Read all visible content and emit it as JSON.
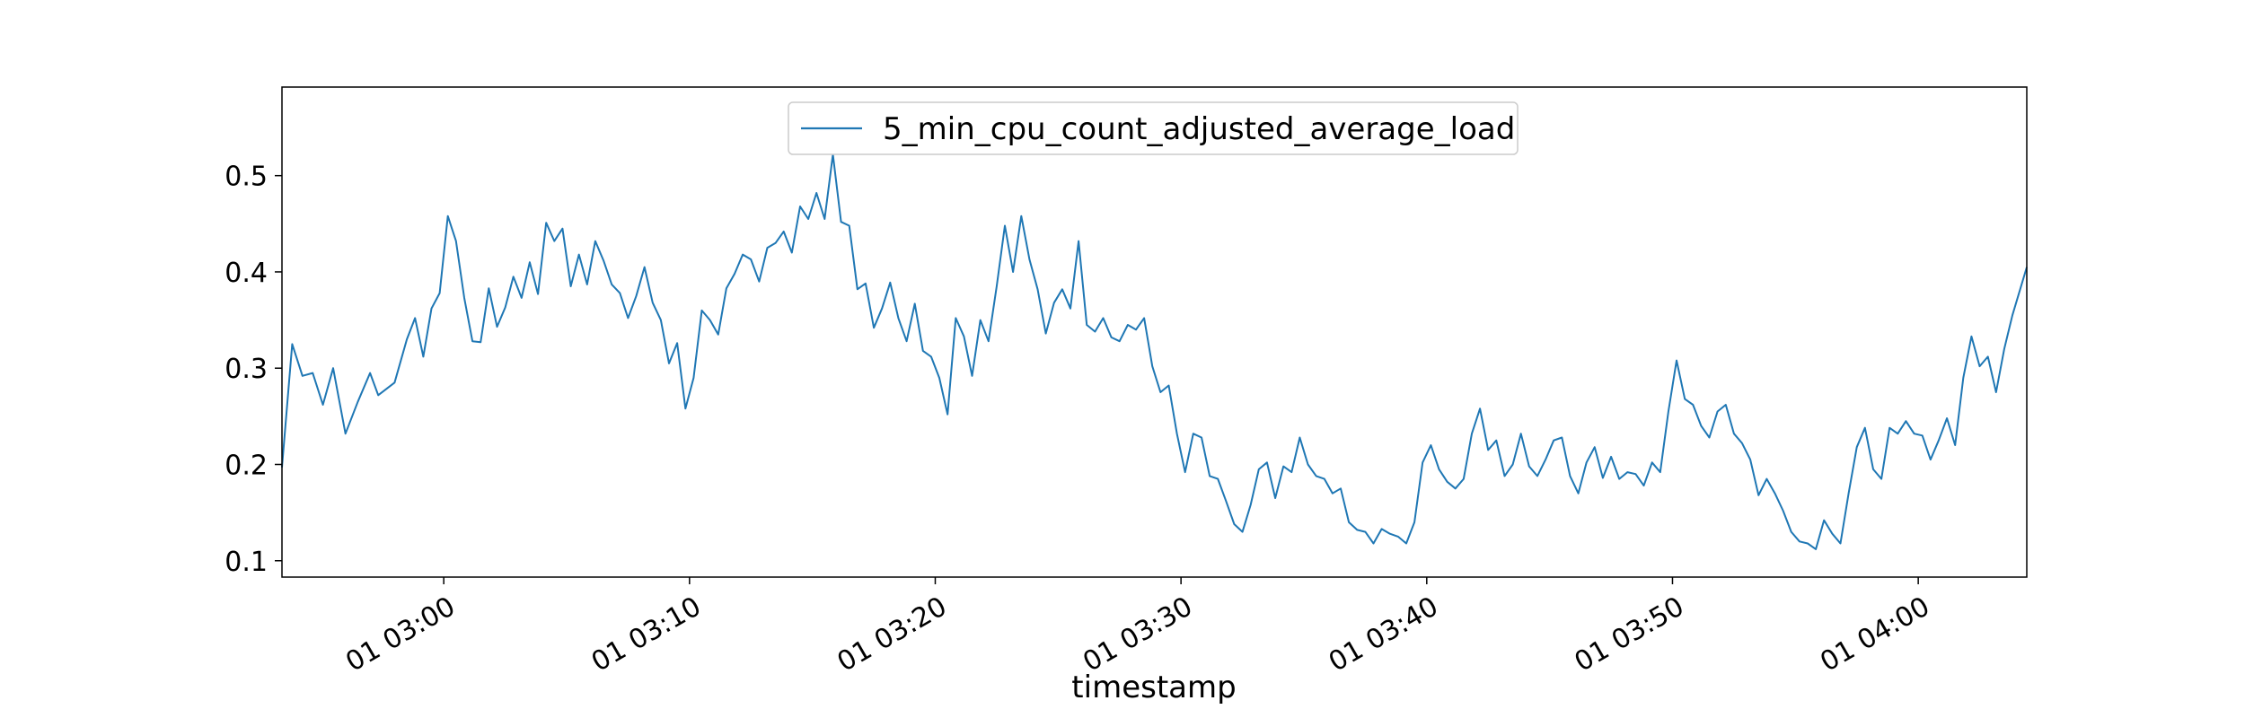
{
  "chart_data": {
    "type": "line",
    "title": "",
    "xlabel": "timestamp",
    "ylabel": "",
    "x_unit": "minutes (clock time 01 HH:MM)",
    "xlim": [
      "02:53:25",
      "04:04:25"
    ],
    "ylim": [
      0.083,
      0.592
    ],
    "x_ticks": [
      {
        "value": "03:00",
        "label": "01 03:00"
      },
      {
        "value": "03:10",
        "label": "01 03:10"
      },
      {
        "value": "03:20",
        "label": "01 03:20"
      },
      {
        "value": "03:30",
        "label": "01 03:30"
      },
      {
        "value": "03:40",
        "label": "01 03:40"
      },
      {
        "value": "03:50",
        "label": "01 03:50"
      },
      {
        "value": "04:00",
        "label": "01 04:00"
      }
    ],
    "y_ticks": [
      {
        "value": 0.1,
        "label": "0.1"
      },
      {
        "value": 0.2,
        "label": "0.2"
      },
      {
        "value": 0.3,
        "label": "0.3"
      },
      {
        "value": 0.4,
        "label": "0.4"
      },
      {
        "value": 0.5,
        "label": "0.5"
      }
    ],
    "grid": false,
    "legend": {
      "placement": "upper center"
    },
    "series": [
      {
        "name": "5_min_cpu_count_adjusted_average_load",
        "color": "#1f77b4",
        "points": [
          [
            "02:53:25",
            0.197
          ],
          [
            "02:53:50",
            0.325
          ],
          [
            "02:54:15",
            0.292
          ],
          [
            "02:54:40",
            0.295
          ],
          [
            "02:55:05",
            0.262
          ],
          [
            "02:55:30",
            0.3
          ],
          [
            "02:56:00",
            0.232
          ],
          [
            "02:56:30",
            0.265
          ],
          [
            "02:57:00",
            0.295
          ],
          [
            "02:57:20",
            0.272
          ],
          [
            "02:58:00",
            0.285
          ],
          [
            "02:58:30",
            0.33
          ],
          [
            "02:58:50",
            0.352
          ],
          [
            "02:59:10",
            0.312
          ],
          [
            "02:59:30",
            0.362
          ],
          [
            "02:59:50",
            0.378
          ],
          [
            "03:00:10",
            0.458
          ],
          [
            "03:00:30",
            0.432
          ],
          [
            "03:00:50",
            0.373
          ],
          [
            "03:01:10",
            0.328
          ],
          [
            "03:01:30",
            0.327
          ],
          [
            "03:01:50",
            0.383
          ],
          [
            "03:02:10",
            0.343
          ],
          [
            "03:02:30",
            0.363
          ],
          [
            "03:02:50",
            0.395
          ],
          [
            "03:03:10",
            0.373
          ],
          [
            "03:03:30",
            0.41
          ],
          [
            "03:03:50",
            0.377
          ],
          [
            "03:04:10",
            0.451
          ],
          [
            "03:04:30",
            0.432
          ],
          [
            "03:04:50",
            0.445
          ],
          [
            "03:05:10",
            0.385
          ],
          [
            "03:05:30",
            0.418
          ],
          [
            "03:05:50",
            0.387
          ],
          [
            "03:06:10",
            0.432
          ],
          [
            "03:06:30",
            0.412
          ],
          [
            "03:06:50",
            0.387
          ],
          [
            "03:07:10",
            0.378
          ],
          [
            "03:07:30",
            0.352
          ],
          [
            "03:07:50",
            0.375
          ],
          [
            "03:08:10",
            0.405
          ],
          [
            "03:08:30",
            0.368
          ],
          [
            "03:08:50",
            0.35
          ],
          [
            "03:09:10",
            0.305
          ],
          [
            "03:09:30",
            0.326
          ],
          [
            "03:09:50",
            0.258
          ],
          [
            "03:10:10",
            0.29
          ],
          [
            "03:10:30",
            0.36
          ],
          [
            "03:10:50",
            0.35
          ],
          [
            "03:11:10",
            0.335
          ],
          [
            "03:11:30",
            0.383
          ],
          [
            "03:11:50",
            0.398
          ],
          [
            "03:12:10",
            0.418
          ],
          [
            "03:12:30",
            0.413
          ],
          [
            "03:12:50",
            0.39
          ],
          [
            "03:13:10",
            0.425
          ],
          [
            "03:13:30",
            0.43
          ],
          [
            "03:13:50",
            0.442
          ],
          [
            "03:14:10",
            0.42
          ],
          [
            "03:14:30",
            0.468
          ],
          [
            "03:14:50",
            0.455
          ],
          [
            "03:15:10",
            0.482
          ],
          [
            "03:15:30",
            0.455
          ],
          [
            "03:15:50",
            0.522
          ],
          [
            "03:16:10",
            0.452
          ],
          [
            "03:16:30",
            0.448
          ],
          [
            "03:16:50",
            0.382
          ],
          [
            "03:17:10",
            0.388
          ],
          [
            "03:17:30",
            0.342
          ],
          [
            "03:17:50",
            0.362
          ],
          [
            "03:18:10",
            0.389
          ],
          [
            "03:18:30",
            0.352
          ],
          [
            "03:18:50",
            0.328
          ],
          [
            "03:19:10",
            0.367
          ],
          [
            "03:19:30",
            0.318
          ],
          [
            "03:19:50",
            0.312
          ],
          [
            "03:20:10",
            0.29
          ],
          [
            "03:20:30",
            0.252
          ],
          [
            "03:20:50",
            0.352
          ],
          [
            "03:21:10",
            0.333
          ],
          [
            "03:21:30",
            0.292
          ],
          [
            "03:21:50",
            0.35
          ],
          [
            "03:22:10",
            0.328
          ],
          [
            "03:22:30",
            0.385
          ],
          [
            "03:22:50",
            0.448
          ],
          [
            "03:23:10",
            0.4
          ],
          [
            "03:23:30",
            0.458
          ],
          [
            "03:23:50",
            0.413
          ],
          [
            "03:24:10",
            0.382
          ],
          [
            "03:24:30",
            0.336
          ],
          [
            "03:24:50",
            0.368
          ],
          [
            "03:25:10",
            0.382
          ],
          [
            "03:25:30",
            0.362
          ],
          [
            "03:25:50",
            0.432
          ],
          [
            "03:26:10",
            0.345
          ],
          [
            "03:26:30",
            0.338
          ],
          [
            "03:26:50",
            0.352
          ],
          [
            "03:27:10",
            0.332
          ],
          [
            "03:27:30",
            0.328
          ],
          [
            "03:27:50",
            0.345
          ],
          [
            "03:28:10",
            0.34
          ],
          [
            "03:28:30",
            0.352
          ],
          [
            "03:28:50",
            0.302
          ],
          [
            "03:29:10",
            0.275
          ],
          [
            "03:29:30",
            0.282
          ],
          [
            "03:29:50",
            0.232
          ],
          [
            "03:30:10",
            0.192
          ],
          [
            "03:30:30",
            0.232
          ],
          [
            "03:30:50",
            0.228
          ],
          [
            "03:31:10",
            0.188
          ],
          [
            "03:31:30",
            0.185
          ],
          [
            "03:31:50",
            0.162
          ],
          [
            "03:32:10",
            0.138
          ],
          [
            "03:32:30",
            0.13
          ],
          [
            "03:32:50",
            0.158
          ],
          [
            "03:33:10",
            0.195
          ],
          [
            "03:33:30",
            0.202
          ],
          [
            "03:33:50",
            0.165
          ],
          [
            "03:34:10",
            0.198
          ],
          [
            "03:34:30",
            0.192
          ],
          [
            "03:34:50",
            0.228
          ],
          [
            "03:35:10",
            0.2
          ],
          [
            "03:35:30",
            0.188
          ],
          [
            "03:35:50",
            0.185
          ],
          [
            "03:36:10",
            0.17
          ],
          [
            "03:36:30",
            0.175
          ],
          [
            "03:36:50",
            0.14
          ],
          [
            "03:37:10",
            0.132
          ],
          [
            "03:37:30",
            0.13
          ],
          [
            "03:37:50",
            0.118
          ],
          [
            "03:38:10",
            0.133
          ],
          [
            "03:38:30",
            0.128
          ],
          [
            "03:38:50",
            0.125
          ],
          [
            "03:39:10",
            0.118
          ],
          [
            "03:39:30",
            0.14
          ],
          [
            "03:39:50",
            0.202
          ],
          [
            "03:40:10",
            0.22
          ],
          [
            "03:40:30",
            0.195
          ],
          [
            "03:40:50",
            0.182
          ],
          [
            "03:41:10",
            0.175
          ],
          [
            "03:41:30",
            0.185
          ],
          [
            "03:41:50",
            0.232
          ],
          [
            "03:42:10",
            0.258
          ],
          [
            "03:42:30",
            0.215
          ],
          [
            "03:42:50",
            0.225
          ],
          [
            "03:43:10",
            0.188
          ],
          [
            "03:43:30",
            0.2
          ],
          [
            "03:43:50",
            0.232
          ],
          [
            "03:44:10",
            0.198
          ],
          [
            "03:44:30",
            0.188
          ],
          [
            "03:44:50",
            0.205
          ],
          [
            "03:45:10",
            0.225
          ],
          [
            "03:45:30",
            0.228
          ],
          [
            "03:45:50",
            0.188
          ],
          [
            "03:46:10",
            0.17
          ],
          [
            "03:46:30",
            0.202
          ],
          [
            "03:46:50",
            0.218
          ],
          [
            "03:47:10",
            0.186
          ],
          [
            "03:47:30",
            0.208
          ],
          [
            "03:47:50",
            0.185
          ],
          [
            "03:48:10",
            0.192
          ],
          [
            "03:48:30",
            0.19
          ],
          [
            "03:48:50",
            0.178
          ],
          [
            "03:49:10",
            0.202
          ],
          [
            "03:49:30",
            0.192
          ],
          [
            "03:49:50",
            0.255
          ],
          [
            "03:50:10",
            0.308
          ],
          [
            "03:50:30",
            0.268
          ],
          [
            "03:50:50",
            0.262
          ],
          [
            "03:51:10",
            0.24
          ],
          [
            "03:51:30",
            0.228
          ],
          [
            "03:51:50",
            0.255
          ],
          [
            "03:52:10",
            0.262
          ],
          [
            "03:52:30",
            0.232
          ],
          [
            "03:52:50",
            0.222
          ],
          [
            "03:53:10",
            0.205
          ],
          [
            "03:53:30",
            0.168
          ],
          [
            "03:53:50",
            0.185
          ],
          [
            "03:54:10",
            0.17
          ],
          [
            "03:54:30",
            0.152
          ],
          [
            "03:54:50",
            0.13
          ],
          [
            "03:55:10",
            0.12
          ],
          [
            "03:55:30",
            0.118
          ],
          [
            "03:55:50",
            0.112
          ],
          [
            "03:56:10",
            0.142
          ],
          [
            "03:56:30",
            0.128
          ],
          [
            "03:56:50",
            0.118
          ],
          [
            "03:57:10",
            0.17
          ],
          [
            "03:57:30",
            0.218
          ],
          [
            "03:57:50",
            0.238
          ],
          [
            "03:58:10",
            0.195
          ],
          [
            "03:58:30",
            0.185
          ],
          [
            "03:58:50",
            0.238
          ],
          [
            "03:59:10",
            0.232
          ],
          [
            "03:59:30",
            0.245
          ],
          [
            "03:59:50",
            0.232
          ],
          [
            "04:00:10",
            0.23
          ],
          [
            "04:00:30",
            0.205
          ],
          [
            "04:00:50",
            0.225
          ],
          [
            "04:01:10",
            0.248
          ],
          [
            "04:01:30",
            0.22
          ],
          [
            "04:01:50",
            0.29
          ],
          [
            "04:02:10",
            0.333
          ],
          [
            "04:02:30",
            0.302
          ],
          [
            "04:02:50",
            0.312
          ],
          [
            "04:03:10",
            0.275
          ],
          [
            "04:03:30",
            0.32
          ],
          [
            "04:03:50",
            0.355
          ],
          [
            "04:04:25",
            0.405
          ]
        ]
      }
    ]
  }
}
